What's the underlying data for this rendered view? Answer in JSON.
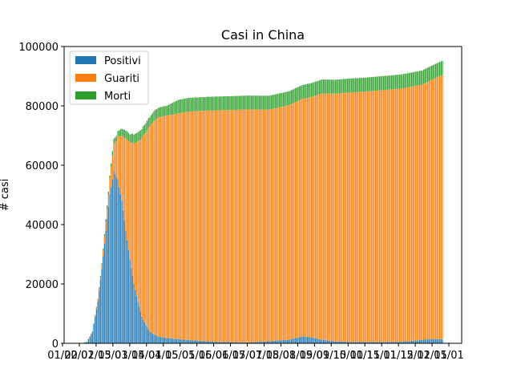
{
  "chart_data": {
    "type": "bar",
    "stacked": true,
    "title": "Casi in China",
    "xlabel": "",
    "ylabel": "# casi",
    "ylim": [
      0,
      100000
    ],
    "yticks": [
      0,
      20000,
      40000,
      60000,
      80000,
      100000
    ],
    "ytick_labels": [
      "0",
      "20000",
      "40000",
      "60000",
      "80000",
      "100000"
    ],
    "xtick_labels_note": "dense overlapping date labels along the x axis (illegible), last reads 01/01",
    "xtick_labels": [
      "01/20",
      "02/01",
      "02/15",
      "03/01",
      "03/15",
      "04/01",
      "04/15",
      "05/01",
      "05/15",
      "06/01",
      "06/15",
      "07/01",
      "07/15",
      "08/01",
      "08/15",
      "09/01",
      "09/15",
      "10/01",
      "10/15",
      "11/01",
      "11/15",
      "12/01",
      "12/15",
      "01/01"
    ],
    "legend": {
      "position": "upper-left",
      "entries": [
        "Positivi",
        "Guariti",
        "Morti"
      ]
    },
    "grid": false,
    "colors": {
      "Positivi": "#1f77b4",
      "Guariti": "#ff7f0e",
      "Morti": "#2ca02c"
    },
    "series_anchors": {
      "Positivi": [
        [
          0,
          0
        ],
        [
          4,
          500
        ],
        [
          8,
          4000
        ],
        [
          12,
          14000
        ],
        [
          15,
          25000
        ],
        [
          18,
          38000
        ],
        [
          21,
          50000
        ],
        [
          24,
          58000
        ],
        [
          27,
          55000
        ],
        [
          30,
          48000
        ],
        [
          33,
          38000
        ],
        [
          36,
          28000
        ],
        [
          39,
          20000
        ],
        [
          42,
          14000
        ],
        [
          45,
          9000
        ],
        [
          48,
          6000
        ],
        [
          51,
          4000
        ],
        [
          54,
          3000
        ],
        [
          58,
          2200
        ],
        [
          64,
          1800
        ],
        [
          72,
          1400
        ],
        [
          80,
          1100
        ],
        [
          90,
          800
        ],
        [
          100,
          500
        ],
        [
          110,
          400
        ],
        [
          125,
          300
        ],
        [
          140,
          700
        ],
        [
          155,
          1200
        ],
        [
          165,
          2300
        ],
        [
          172,
          2000
        ],
        [
          180,
          1200
        ],
        [
          190,
          600
        ],
        [
          210,
          400
        ],
        [
          240,
          500
        ],
        [
          258,
          1300
        ],
        [
          265,
          1400
        ],
        [
          270,
          1400
        ]
      ],
      "Guariti": [
        [
          0,
          0
        ],
        [
          8,
          0
        ],
        [
          14,
          1000
        ],
        [
          20,
          4000
        ],
        [
          26,
          12000
        ],
        [
          30,
          22000
        ],
        [
          34,
          34000
        ],
        [
          38,
          45000
        ],
        [
          42,
          54000
        ],
        [
          46,
          62000
        ],
        [
          50,
          68000
        ],
        [
          54,
          72000
        ],
        [
          58,
          74000
        ],
        [
          64,
          75000
        ],
        [
          72,
          76000
        ],
        [
          80,
          77000
        ],
        [
          100,
          78000
        ],
        [
          125,
          78500
        ],
        [
          140,
          78000
        ],
        [
          155,
          79000
        ],
        [
          165,
          80000
        ],
        [
          172,
          81000
        ],
        [
          180,
          83000
        ],
        [
          200,
          84000
        ],
        [
          230,
          85000
        ],
        [
          255,
          86000
        ],
        [
          270,
          89000
        ]
      ],
      "Morti": [
        [
          0,
          0
        ],
        [
          8,
          50
        ],
        [
          16,
          500
        ],
        [
          24,
          1600
        ],
        [
          32,
          2600
        ],
        [
          40,
          3100
        ],
        [
          48,
          3200
        ],
        [
          56,
          3300
        ],
        [
          64,
          3300
        ],
        [
          72,
          4600
        ],
        [
          140,
          4700
        ],
        [
          200,
          4700
        ],
        [
          270,
          4800
        ]
      ]
    },
    "num_bars": 271
  }
}
